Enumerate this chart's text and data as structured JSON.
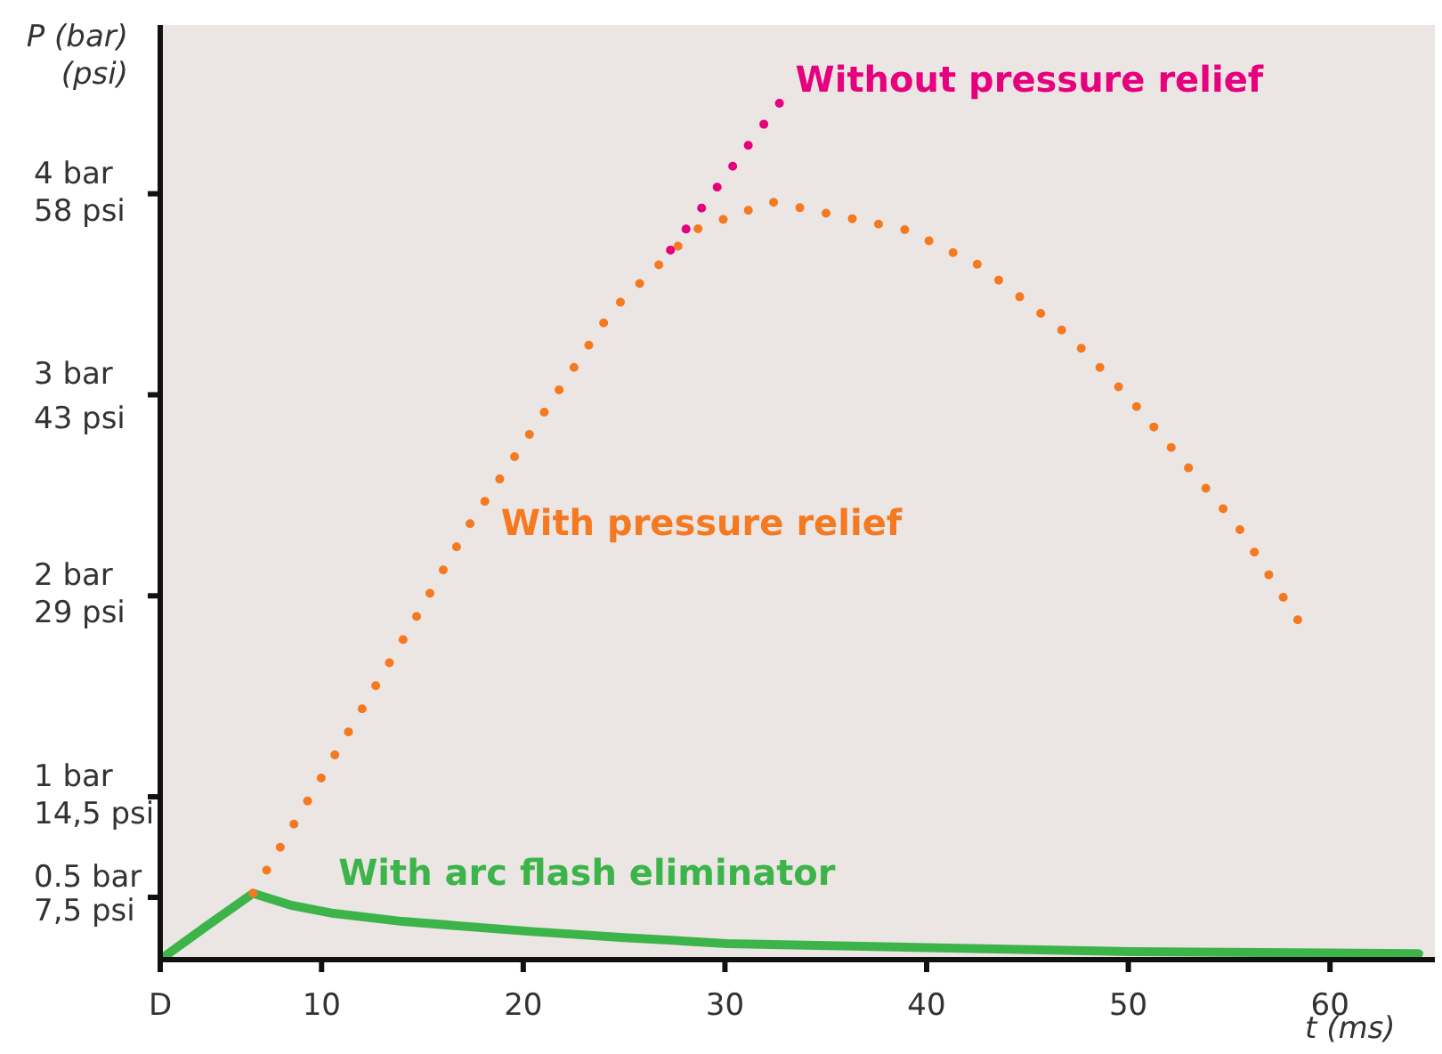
{
  "chart_data": {
    "type": "line",
    "xlabel": "t (ms)",
    "ylabel": "P (bar)\n(psi)",
    "xlim": [
      2,
      65.2
    ],
    "xticks": [
      {
        "value": 2,
        "label": "D"
      },
      10,
      20,
      30,
      40,
      50,
      60
    ],
    "ylim": [
      0.19,
      4.84
    ],
    "yticks": [
      {
        "value": 0.5,
        "label": "0.5 bar"
      },
      {
        "value": 1,
        "label": "1 bar"
      },
      {
        "value": 2,
        "label": "2 bar"
      },
      {
        "value": 3,
        "label": "3 bar"
      },
      {
        "value": 4,
        "label": "4 bar"
      }
    ],
    "y2lim": [
      2.76,
      70.2
    ],
    "y2ticks": [
      {
        "value": 7.5,
        "label": "7,5 psi"
      },
      {
        "value": 14.5,
        "label": "14,5 psi"
      },
      {
        "value": 29,
        "label": "29 psi"
      },
      {
        "value": 43,
        "label": "43 psi"
      },
      {
        "value": 58,
        "label": "58 psi"
      }
    ],
    "series": [
      {
        "name": "Without pressure relief",
        "color": "#e6007e",
        "line_style": "dotted",
        "x": [
          27.3,
          32.7
        ],
        "values": [
          3.72,
          4.45
        ]
      },
      {
        "name": "With pressure relief",
        "color": "#f47920",
        "line_style": "dotted",
        "x": [
          6.6,
          14.5,
          17.3,
          24.4,
          28.5,
          32.3,
          39.0,
          42.7,
          47.1,
          50,
          52.7,
          55.4,
          58.4
        ],
        "values": [
          0.52,
          1.86,
          2.35,
          3.42,
          3.82,
          3.96,
          3.82,
          3.64,
          3.29,
          2.99,
          2.67,
          2.35,
          1.88
        ]
      },
      {
        "name": "With arc flash eliminator",
        "color": "#3cb44a",
        "line_style": "solid",
        "x": [
          2,
          4.2,
          6.6,
          8.5,
          10.6,
          14,
          20.4,
          25,
          30.1,
          40,
          50.1,
          64.4
        ],
        "values": [
          0.19,
          0.35,
          0.52,
          0.46,
          0.42,
          0.38,
          0.33,
          0.3,
          0.27,
          0.25,
          0.23,
          0.22
        ]
      }
    ]
  }
}
